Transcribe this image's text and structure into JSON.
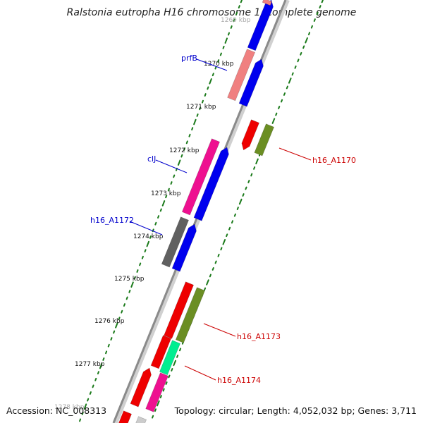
{
  "title": "Ralstonia eutropha H16 chromosome 1, complete genome",
  "footer": {
    "accession": "Accession: NC_008313",
    "topology": "Topology: circular; Length: 4,052,032 bp; Genes: 3,711"
  },
  "colors": {
    "backbone": "#8a8a8a",
    "tick": "#1a7a1a",
    "gene_label": "#0000cc",
    "locus_label": "#cc0000"
  },
  "scale": {
    "unit": "kbp",
    "labels": [
      "1269 kbp",
      "1270 kbp",
      "1271 kbp",
      "1272 kbp",
      "1273 kbp",
      "1274 kbp",
      "1275 kbp",
      "1276 kbp",
      "1277 kbp",
      "1278 kbp"
    ]
  },
  "gene_labels": [
    {
      "text": "prfB"
    },
    {
      "text": "clJ"
    },
    {
      "text": "h16_A1172"
    }
  ],
  "locus_labels": [
    {
      "text": "h16_A1170"
    },
    {
      "text": "h16_A1173"
    },
    {
      "text": "h16_A1174"
    }
  ],
  "feature_colors": {
    "red": "#ee0000",
    "salmon": "#f08080",
    "blue": "#0000ee",
    "magenta": "#ee1090",
    "gray": "#606060",
    "olive": "#6b8e23",
    "teal": "#00ee90"
  }
}
